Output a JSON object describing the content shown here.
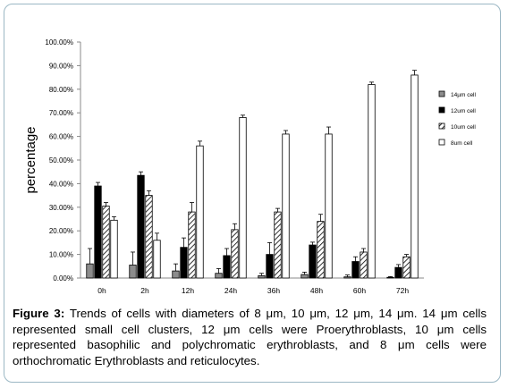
{
  "chart_data": {
    "type": "bar",
    "ylabel": "percentage",
    "ylim": [
      0,
      100
    ],
    "yticks": [
      "0.00%",
      "10.00%",
      "20.00%",
      "30.00%",
      "40.00%",
      "50.00%",
      "60.00%",
      "70.00%",
      "80.00%",
      "90.00%",
      "100.00%"
    ],
    "categories": [
      "0h",
      "2h",
      "12h",
      "24h",
      "36h",
      "48h",
      "60h",
      "72h"
    ],
    "legend_position": "right",
    "series": [
      {
        "name": "14µm cell",
        "fill": "gray",
        "values": [
          6,
          5.5,
          3,
          2,
          1,
          1.5,
          0.5,
          0.3
        ],
        "errors": [
          6.5,
          5.5,
          3,
          2,
          1,
          1,
          0.8,
          0.3
        ]
      },
      {
        "name": "12um cell",
        "fill": "black",
        "values": [
          39,
          43.5,
          13,
          9.5,
          10,
          14,
          7,
          4.5
        ],
        "errors": [
          1.5,
          1.5,
          4,
          3,
          5,
          1.2,
          2,
          1.2
        ]
      },
      {
        "name": "10um cell",
        "fill": "hatch",
        "values": [
          30.5,
          35,
          28,
          20.5,
          28,
          24,
          11,
          9
        ],
        "errors": [
          1.5,
          2,
          4,
          2.5,
          1.5,
          3,
          1.5,
          1
        ]
      },
      {
        "name": "8um cell",
        "fill": "white",
        "values": [
          24.5,
          16,
          56,
          68,
          61,
          61,
          82,
          86
        ],
        "errors": [
          1.5,
          3,
          2,
          1,
          1.5,
          3,
          1,
          2
        ]
      }
    ]
  },
  "caption": {
    "label": "Figure 3:",
    "text": " Trends of cells with diameters of 8 μm, 10 μm, 12 μm, 14 μm. 14 μm cells represented small cell clusters, 12 μm cells were Proerythroblasts, 10 μm cells represented basophilic and polychromatic erythroblasts, and 8 μm cells were orthochromatic Erythroblasts and reticulocytes."
  }
}
